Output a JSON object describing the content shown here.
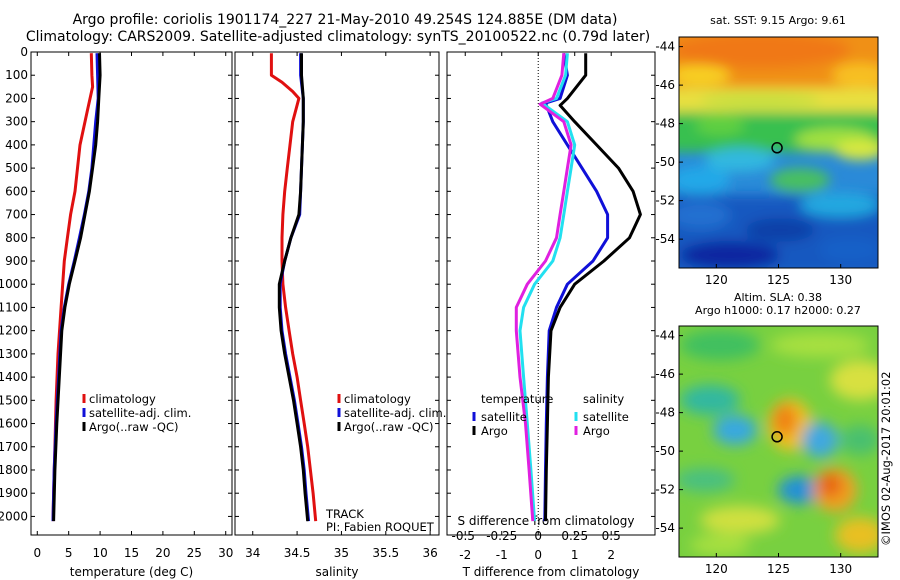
{
  "figure": {
    "title_line1": "Argo profile: coriolis 1901174_227 21-May-2010 49.254S 124.885E (DM data)",
    "title_line2": "Climatology: CARS2009. Satellite-adjusted climatology: synTS_20100522.nc (0.79d later)",
    "track_label": "TRACK",
    "pi_label": "PI: Fabien ROQUET",
    "credit": "©IMOS 02-Aug-2017 20:01:02"
  },
  "colors": {
    "climatology": "#e01010",
    "satellite_adj": "#1010d8",
    "argo": "#000000",
    "sal_satellite": "#22e0f0",
    "sal_argo": "#e020e0"
  },
  "chart_data": [
    {
      "id": "temperature",
      "type": "line",
      "xlabel": "temperature (deg C)",
      "ylabel": "",
      "xlim": [
        -1,
        31
      ],
      "ylim": [
        2080,
        0
      ],
      "xticks": [
        "0",
        "5",
        "10",
        "15",
        "20",
        "25",
        "30"
      ],
      "xtick_values": [
        0,
        5,
        10,
        15,
        20,
        25,
        30
      ],
      "yticks": [
        "0",
        "100",
        "200",
        "300",
        "400",
        "500",
        "600",
        "700",
        "800",
        "900",
        "1000",
        "1100",
        "1200",
        "1300",
        "1400",
        "1500",
        "1600",
        "1700",
        "1800",
        "1900",
        "2000"
      ],
      "ytick_values": [
        0,
        100,
        200,
        300,
        400,
        500,
        600,
        700,
        800,
        900,
        1000,
        1100,
        1200,
        1300,
        1400,
        1500,
        1600,
        1700,
        1800,
        1900,
        2000
      ],
      "legend": [
        "climatology",
        "satellite-adj. clim.",
        "Argo(..raw -QC)"
      ],
      "legend_position": "lower-right",
      "series": [
        {
          "name": "climatology",
          "color": "#e01010",
          "points": [
            [
              8.6,
              5
            ],
            [
              8.7,
              100
            ],
            [
              8.8,
              150
            ],
            [
              8.0,
              250
            ],
            [
              6.8,
              400
            ],
            [
              6.0,
              600
            ],
            [
              5.3,
              700
            ],
            [
              4.8,
              800
            ],
            [
              4.3,
              900
            ],
            [
              3.8,
              1100
            ],
            [
              3.3,
              1300
            ],
            [
              3.0,
              1500
            ],
            [
              2.8,
              1700
            ],
            [
              2.6,
              1900
            ],
            [
              2.5,
              2020
            ]
          ]
        },
        {
          "name": "satellite-adj. clim.",
          "color": "#1010d8",
          "points": [
            [
              9.5,
              5
            ],
            [
              9.6,
              100
            ],
            [
              9.7,
              200
            ],
            [
              9.3,
              300
            ],
            [
              9.0,
              400
            ],
            [
              8.7,
              500
            ],
            [
              8.2,
              600
            ],
            [
              7.5,
              700
            ],
            [
              6.7,
              800
            ],
            [
              5.9,
              900
            ],
            [
              5.0,
              1000
            ],
            [
              4.3,
              1100
            ],
            [
              3.8,
              1200
            ],
            [
              3.4,
              1400
            ],
            [
              3.0,
              1600
            ],
            [
              2.7,
              1800
            ],
            [
              2.5,
              2020
            ]
          ]
        },
        {
          "name": "Argo(..raw -QC)",
          "color": "#000000",
          "points": [
            [
              9.9,
              5
            ],
            [
              10.0,
              100
            ],
            [
              9.8,
              200
            ],
            [
              9.6,
              300
            ],
            [
              9.3,
              400
            ],
            [
              8.8,
              500
            ],
            [
              8.3,
              600
            ],
            [
              7.6,
              700
            ],
            [
              6.9,
              800
            ],
            [
              6.0,
              900
            ],
            [
              5.1,
              1000
            ],
            [
              4.4,
              1100
            ],
            [
              3.9,
              1200
            ],
            [
              3.5,
              1400
            ],
            [
              3.1,
              1600
            ],
            [
              2.8,
              1800
            ],
            [
              2.6,
              2020
            ]
          ]
        }
      ]
    },
    {
      "id": "salinity",
      "type": "line",
      "xlabel": "salinity",
      "ylabel": "",
      "xlim": [
        33.8,
        36.1
      ],
      "ylim": [
        2080,
        0
      ],
      "xticks": [
        "34",
        "34.5",
        "35",
        "35.5",
        "36"
      ],
      "xtick_values": [
        34,
        34.5,
        35,
        35.5,
        36
      ],
      "legend": [
        "climatology",
        "satellite-adj. clim.",
        "Argo(..raw -QC)"
      ],
      "legend_position": "lower-right",
      "series": [
        {
          "name": "climatology",
          "color": "#e01010",
          "points": [
            [
              34.21,
              5
            ],
            [
              34.21,
              100
            ],
            [
              34.33,
              130
            ],
            [
              34.45,
              170
            ],
            [
              34.52,
              200
            ],
            [
              34.45,
              300
            ],
            [
              34.42,
              400
            ],
            [
              34.39,
              500
            ],
            [
              34.36,
              600
            ],
            [
              34.34,
              700
            ],
            [
              34.33,
              800
            ],
            [
              34.33,
              900
            ],
            [
              34.34,
              1000
            ],
            [
              34.37,
              1100
            ],
            [
              34.41,
              1200
            ],
            [
              34.45,
              1300
            ],
            [
              34.5,
              1400
            ],
            [
              34.54,
              1500
            ],
            [
              34.58,
              1600
            ],
            [
              34.62,
              1700
            ],
            [
              34.65,
              1800
            ],
            [
              34.68,
              1900
            ],
            [
              34.71,
              2020
            ]
          ]
        },
        {
          "name": "satellite-adj. clim.",
          "color": "#1010d8",
          "points": [
            [
              34.54,
              5
            ],
            [
              34.54,
              100
            ],
            [
              34.57,
              200
            ],
            [
              34.57,
              300
            ],
            [
              34.56,
              400
            ],
            [
              34.55,
              500
            ],
            [
              34.54,
              600
            ],
            [
              34.53,
              700
            ],
            [
              34.43,
              800
            ],
            [
              34.36,
              900
            ],
            [
              34.31,
              1000
            ],
            [
              34.31,
              1100
            ],
            [
              34.33,
              1200
            ],
            [
              34.37,
              1300
            ],
            [
              34.42,
              1400
            ],
            [
              34.47,
              1500
            ],
            [
              34.51,
              1600
            ],
            [
              34.55,
              1700
            ],
            [
              34.58,
              1800
            ],
            [
              34.6,
              1900
            ],
            [
              34.63,
              2020
            ]
          ]
        },
        {
          "name": "Argo(..raw -QC)",
          "color": "#000000",
          "points": [
            [
              34.55,
              5
            ],
            [
              34.55,
              100
            ],
            [
              34.57,
              200
            ],
            [
              34.57,
              300
            ],
            [
              34.56,
              400
            ],
            [
              34.55,
              500
            ],
            [
              34.54,
              600
            ],
            [
              34.52,
              700
            ],
            [
              34.43,
              800
            ],
            [
              34.36,
              900
            ],
            [
              34.3,
              1000
            ],
            [
              34.3,
              1100
            ],
            [
              34.32,
              1200
            ],
            [
              34.36,
              1300
            ],
            [
              34.41,
              1400
            ],
            [
              34.46,
              1500
            ],
            [
              34.5,
              1600
            ],
            [
              34.54,
              1700
            ],
            [
              34.57,
              1800
            ],
            [
              34.59,
              1900
            ],
            [
              34.62,
              2020
            ]
          ]
        }
      ]
    },
    {
      "id": "difference",
      "type": "line",
      "xlabel": "T difference from climatology",
      "x2label": "S difference from climatology",
      "ylabel": "",
      "xlim": [
        -2.5,
        3.2
      ],
      "ylim": [
        2080,
        0
      ],
      "xticks": [
        "-2",
        "-1",
        "0",
        "1",
        "2"
      ],
      "xtick_values": [
        -2,
        -1,
        0,
        1,
        2
      ],
      "x2ticks": [
        "-0.5",
        "-0.25",
        "0",
        "0.25",
        "0.5"
      ],
      "x2tick_values": [
        -2,
        -1,
        0,
        1,
        2
      ],
      "zero_line": "dotted",
      "legend_titles": [
        "temperature",
        "salinity"
      ],
      "legend": [
        "satellite",
        "Argo",
        "satellite",
        "Argo"
      ],
      "legend_position": "lower-center",
      "series": [
        {
          "name": "satellite",
          "group": "temperature",
          "color": "#1010d8",
          "points": [
            [
              0.7,
              5
            ],
            [
              0.8,
              100
            ],
            [
              0.6,
              200
            ],
            [
              0.2,
              220
            ],
            [
              0.4,
              300
            ],
            [
              0.8,
              400
            ],
            [
              1.2,
              500
            ],
            [
              1.6,
              600
            ],
            [
              1.9,
              700
            ],
            [
              1.9,
              800
            ],
            [
              1.5,
              900
            ],
            [
              0.8,
              1000
            ],
            [
              0.5,
              1100
            ],
            [
              0.3,
              1200
            ],
            [
              0.25,
              1400
            ],
            [
              0.22,
              1600
            ],
            [
              0.2,
              1800
            ],
            [
              0.18,
              2020
            ]
          ]
        },
        {
          "name": "Argo",
          "group": "temperature",
          "color": "#000000",
          "points": [
            [
              1.3,
              5
            ],
            [
              1.3,
              100
            ],
            [
              0.8,
              200
            ],
            [
              0.6,
              230
            ],
            [
              1.0,
              300
            ],
            [
              1.6,
              400
            ],
            [
              2.2,
              500
            ],
            [
              2.6,
              600
            ],
            [
              2.8,
              700
            ],
            [
              2.5,
              800
            ],
            [
              1.8,
              900
            ],
            [
              1.0,
              1000
            ],
            [
              0.6,
              1100
            ],
            [
              0.35,
              1200
            ],
            [
              0.28,
              1400
            ],
            [
              0.25,
              1600
            ],
            [
              0.22,
              1800
            ],
            [
              0.2,
              2020
            ]
          ]
        },
        {
          "name": "satellite",
          "group": "salinity",
          "color": "#22e0f0",
          "points": [
            [
              0.8,
              5
            ],
            [
              0.75,
              100
            ],
            [
              0.5,
              200
            ],
            [
              0.1,
              220
            ],
            [
              0.8,
              300
            ],
            [
              1.0,
              400
            ],
            [
              0.9,
              500
            ],
            [
              0.8,
              600
            ],
            [
              0.7,
              700
            ],
            [
              0.6,
              800
            ],
            [
              0.4,
              900
            ],
            [
              -0.1,
              1000
            ],
            [
              -0.4,
              1100
            ],
            [
              -0.5,
              1200
            ],
            [
              -0.4,
              1400
            ],
            [
              -0.3,
              1600
            ],
            [
              -0.2,
              1800
            ],
            [
              -0.1,
              2020
            ]
          ]
        },
        {
          "name": "Argo",
          "group": "salinity",
          "color": "#e020e0",
          "points": [
            [
              0.7,
              5
            ],
            [
              0.65,
              100
            ],
            [
              0.4,
              200
            ],
            [
              0.05,
              225
            ],
            [
              0.7,
              300
            ],
            [
              0.9,
              400
            ],
            [
              0.8,
              500
            ],
            [
              0.7,
              600
            ],
            [
              0.6,
              700
            ],
            [
              0.5,
              800
            ],
            [
              0.2,
              900
            ],
            [
              -0.3,
              1000
            ],
            [
              -0.6,
              1100
            ],
            [
              -0.6,
              1200
            ],
            [
              -0.5,
              1400
            ],
            [
              -0.35,
              1600
            ],
            [
              -0.25,
              1800
            ],
            [
              -0.15,
              2020
            ]
          ]
        }
      ]
    },
    {
      "id": "sst_map",
      "type": "heatmap",
      "title": "sat. SST: 9.15 Argo: 9.61",
      "xticks": [
        "120",
        "125",
        "130"
      ],
      "yticks": [
        "-44",
        "-46",
        "-48",
        "-50",
        "-52",
        "-54"
      ],
      "xlim": [
        117,
        133
      ],
      "ylim": [
        -55.5,
        -43.5
      ],
      "marker": {
        "lon": 124.885,
        "lat": -49.254
      }
    },
    {
      "id": "sla_map",
      "type": "heatmap",
      "title": "Altim. SLA: 0.38",
      "subtitle": "Argo h1000: 0.17 h2000: 0.27",
      "xticks": [
        "120",
        "125",
        "130"
      ],
      "yticks": [
        "-44",
        "-46",
        "-48",
        "-50",
        "-52",
        "-54"
      ],
      "xlim": [
        117,
        133
      ],
      "ylim": [
        -55.5,
        -43.5
      ],
      "marker": {
        "lon": 124.885,
        "lat": -49.254
      }
    }
  ]
}
